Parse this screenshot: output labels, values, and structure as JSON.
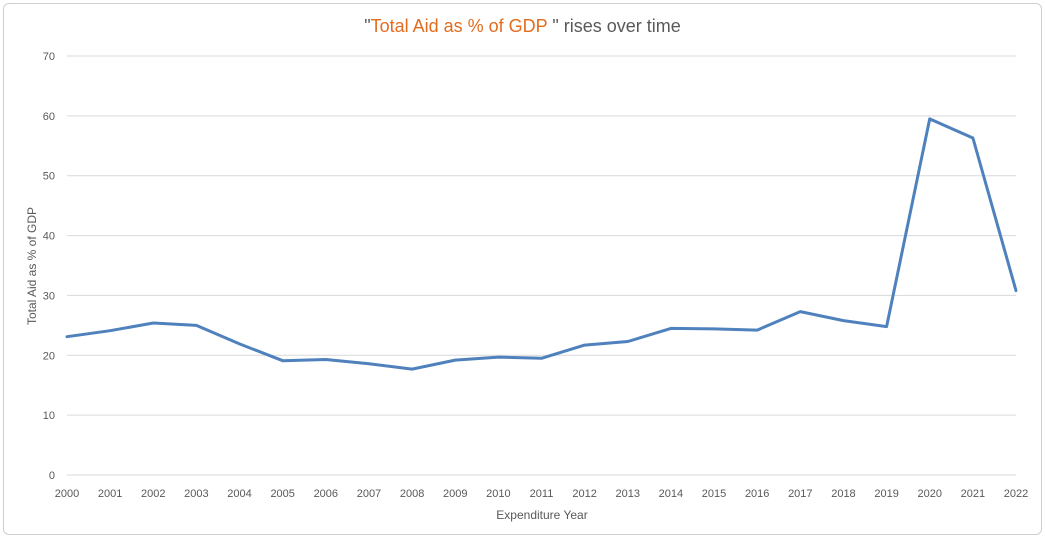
{
  "chart_data": {
    "type": "line",
    "title": {
      "quote_open": "\"",
      "highlight": "Total Aid as % of GDP",
      "rest": " \" rises over time"
    },
    "xlabel": "Expenditure Year",
    "ylabel": "Total  Aid as % of GDP",
    "ylim": [
      0,
      70
    ],
    "yticks": [
      0,
      10,
      20,
      30,
      40,
      50,
      60,
      70
    ],
    "grid": true,
    "categories": [
      "2000",
      "2001",
      "2002",
      "2003",
      "2004",
      "2005",
      "2006",
      "2007",
      "2008",
      "2009",
      "2010",
      "2011",
      "2012",
      "2013",
      "2014",
      "2015",
      "2016",
      "2017",
      "2018",
      "2019",
      "2020",
      "2021",
      "2022"
    ],
    "series": [
      {
        "values": [
          23.1,
          24.1,
          25.4,
          25.0,
          21.9,
          19.1,
          19.3,
          18.6,
          17.7,
          19.2,
          19.7,
          19.5,
          21.7,
          22.3,
          24.5,
          24.4,
          24.2,
          27.3,
          25.8,
          24.8,
          59.5,
          56.3,
          30.8
        ],
        "color": "#4f81bd"
      }
    ],
    "colors": {
      "line": "#4f81bd",
      "grid": "#d9d9d9",
      "title_highlight": "#e36c1f",
      "text": "#595959"
    }
  }
}
